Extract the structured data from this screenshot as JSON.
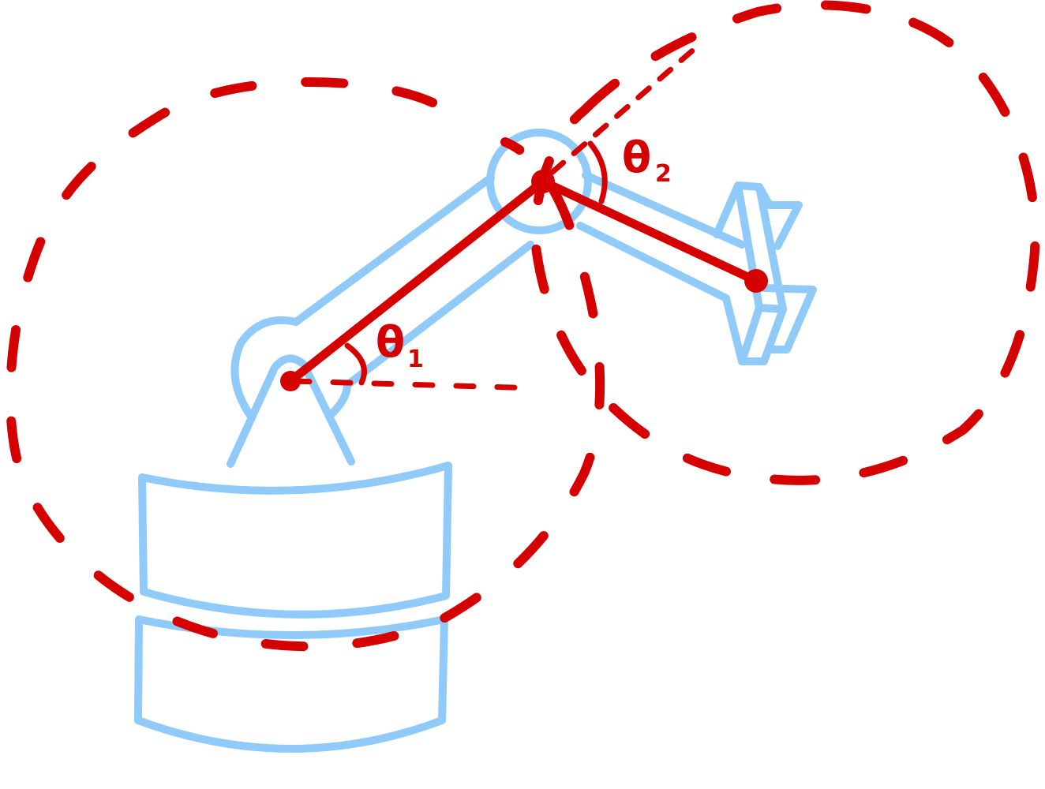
{
  "colors": {
    "arm_outline": "#90CAF9",
    "kinematics": "#D50000",
    "background": "#FFFFFF"
  },
  "labels": {
    "theta1": "θ",
    "theta1_sub": "1",
    "theta2": "θ",
    "theta2_sub": "2"
  }
}
